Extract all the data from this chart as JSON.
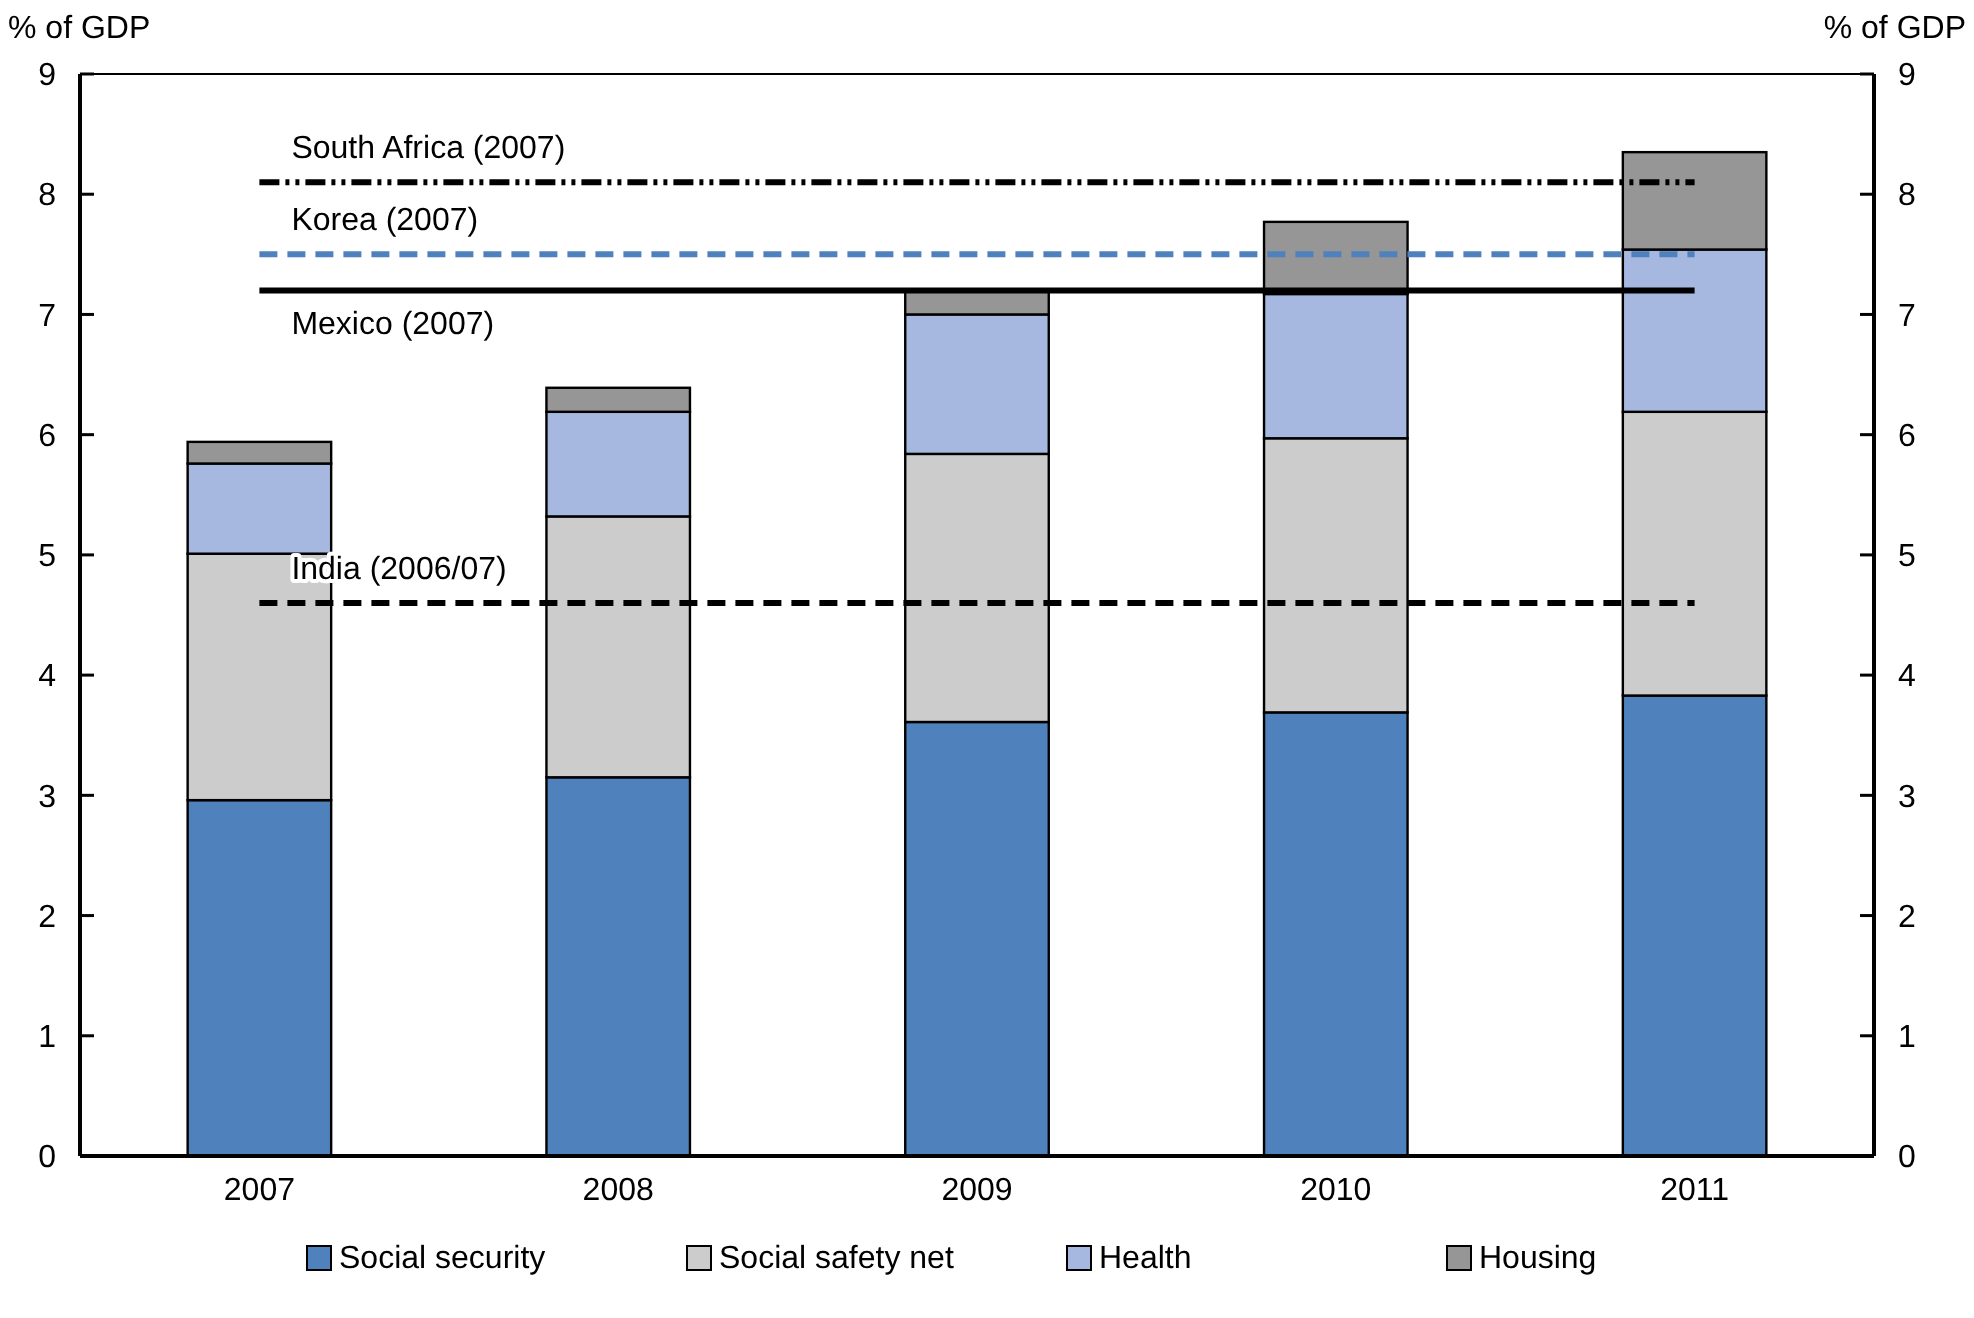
{
  "chart_data": {
    "type": "bar",
    "stacked": true,
    "ylabel": "% of GDP",
    "y2label": "% of GDP",
    "categories": [
      "2007",
      "2008",
      "2009",
      "2010",
      "2011"
    ],
    "series": [
      {
        "name": "Social security",
        "color": "#4f81bd",
        "values": [
          2.96,
          3.15,
          3.61,
          3.69,
          3.83
        ]
      },
      {
        "name": "Social safety net",
        "color": "#cccccc",
        "values": [
          2.05,
          2.17,
          2.23,
          2.28,
          2.36
        ]
      },
      {
        "name": "Health",
        "color": "#a6b8e0",
        "values": [
          0.75,
          0.87,
          1.16,
          1.2,
          1.35
        ]
      },
      {
        "name": "Housing",
        "color": "#969696",
        "values": [
          0.18,
          0.2,
          0.2,
          0.6,
          0.81
        ]
      }
    ],
    "ylim": [
      0,
      9
    ],
    "yticks": [
      0,
      1,
      2,
      3,
      4,
      5,
      6,
      7,
      8,
      9
    ],
    "y2lim": [
      0,
      9
    ],
    "y2ticks": [
      0,
      1,
      2,
      3,
      4,
      5,
      6,
      7,
      8,
      9
    ],
    "ref_lines": [
      {
        "axis": "y",
        "value": 8.1,
        "label": "South Africa (2007)",
        "color": "#000000",
        "line_style": "dotted"
      },
      {
        "axis": "y",
        "value": 7.5,
        "label": "Korea (2007)",
        "color": "#4f81bd",
        "line_style": "dashed"
      },
      {
        "axis": "y",
        "value": 7.2,
        "label": "Mexico (2007)",
        "color": "#000000",
        "line_style": "solid"
      },
      {
        "axis": "y",
        "value": 4.6,
        "label": "India (2006/07)",
        "color": "#000000",
        "line_style": "dashed"
      }
    ],
    "grid": false,
    "legend": "bottom"
  }
}
